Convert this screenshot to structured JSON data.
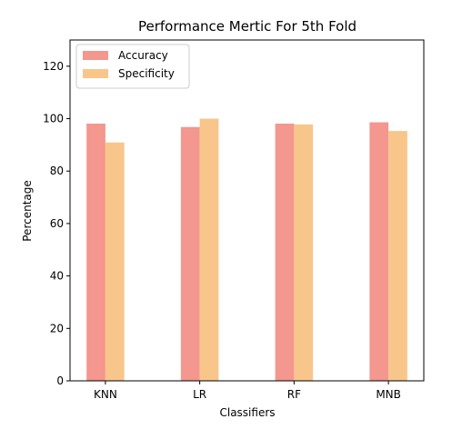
{
  "chart_data": {
    "type": "bar",
    "title": "Performance Mertic For 5th Fold",
    "xlabel": "Classifiers",
    "ylabel": "Percentage",
    "categories": [
      "KNN",
      "LR",
      "RF",
      "MNB"
    ],
    "series": [
      {
        "name": "Accuracy",
        "values": [
          98.1,
          96.8,
          98.1,
          98.6
        ],
        "color": "#f4978e"
      },
      {
        "name": "Specificity",
        "values": [
          90.9,
          100,
          97.8,
          95.3
        ],
        "color": "#f8c68a"
      }
    ],
    "ylim": [
      0,
      130
    ],
    "yticks": [
      0,
      20,
      40,
      60,
      80,
      100,
      120
    ],
    "grid": false,
    "legend_position": "top-left"
  }
}
